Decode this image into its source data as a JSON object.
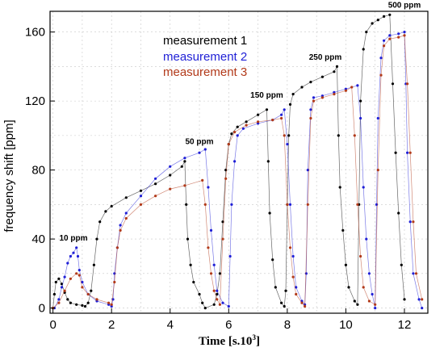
{
  "chart_data": {
    "type": "scatter",
    "xlabel": "Time [s.10",
    "xlabel_sup": "3",
    "xlabel_end": "]",
    "ylabel": "frequency shift  [ppm]",
    "xlim": [
      -0.1,
      12.8
    ],
    "ylim": [
      -3,
      172
    ],
    "xticks": [
      0,
      2,
      4,
      6,
      8,
      10,
      12
    ],
    "yticks": [
      0,
      40,
      80,
      120,
      160
    ],
    "grid": true,
    "legend_position": "top-center",
    "annotations": [
      {
        "text": "10 ppm",
        "x": 0.7,
        "y": 39
      },
      {
        "text": "50 ppm",
        "x": 5.0,
        "y": 95
      },
      {
        "text": "150 ppm",
        "x": 7.3,
        "y": 122
      },
      {
        "text": "250 ppm",
        "x": 9.3,
        "y": 144
      },
      {
        "text": "500 ppm",
        "x": 12.0,
        "y": 174
      }
    ],
    "series": [
      {
        "name": "measurement 1",
        "color": "#000000",
        "points": [
          [
            0.0,
            0
          ],
          [
            0.05,
            8
          ],
          [
            0.1,
            15
          ],
          [
            0.2,
            17
          ],
          [
            0.3,
            14
          ],
          [
            0.4,
            9
          ],
          [
            0.5,
            5
          ],
          [
            0.6,
            3
          ],
          [
            0.8,
            2
          ],
          [
            1.0,
            1.5
          ],
          [
            1.1,
            1
          ],
          [
            1.2,
            3
          ],
          [
            1.3,
            10
          ],
          [
            1.4,
            25
          ],
          [
            1.5,
            40
          ],
          [
            1.6,
            50
          ],
          [
            1.8,
            56
          ],
          [
            2.0,
            59
          ],
          [
            2.5,
            64
          ],
          [
            3.0,
            68
          ],
          [
            3.5,
            72
          ],
          [
            4.0,
            77
          ],
          [
            4.4,
            82
          ],
          [
            4.5,
            85
          ],
          [
            4.55,
            60
          ],
          [
            4.6,
            40
          ],
          [
            4.7,
            25
          ],
          [
            4.8,
            15
          ],
          [
            5.0,
            8
          ],
          [
            5.1,
            3
          ],
          [
            5.2,
            0
          ],
          [
            5.5,
            2
          ],
          [
            5.6,
            8
          ],
          [
            5.7,
            20
          ],
          [
            5.8,
            50
          ],
          [
            5.9,
            80
          ],
          [
            6.0,
            95
          ],
          [
            6.1,
            101
          ],
          [
            6.3,
            105
          ],
          [
            6.6,
            108
          ],
          [
            7.0,
            112
          ],
          [
            7.3,
            115
          ],
          [
            7.35,
            85
          ],
          [
            7.4,
            55
          ],
          [
            7.5,
            28
          ],
          [
            7.6,
            12
          ],
          [
            7.8,
            3
          ],
          [
            7.9,
            1
          ],
          [
            7.95,
            10
          ],
          [
            8.0,
            60
          ],
          [
            8.05,
            100
          ],
          [
            8.1,
            118
          ],
          [
            8.2,
            124
          ],
          [
            8.5,
            128
          ],
          [
            8.8,
            131
          ],
          [
            9.2,
            134
          ],
          [
            9.6,
            137
          ],
          [
            9.7,
            140
          ],
          [
            9.75,
            100
          ],
          [
            9.8,
            70
          ],
          [
            9.9,
            45
          ],
          [
            10.0,
            25
          ],
          [
            10.1,
            12
          ],
          [
            10.3,
            4
          ],
          [
            10.4,
            2
          ],
          [
            10.45,
            60
          ],
          [
            10.5,
            120
          ],
          [
            10.6,
            150
          ],
          [
            10.7,
            160
          ],
          [
            10.9,
            165
          ],
          [
            11.1,
            167
          ],
          [
            11.3,
            169
          ],
          [
            11.5,
            170
          ],
          [
            11.6,
            130
          ],
          [
            11.7,
            90
          ],
          [
            11.8,
            55
          ],
          [
            11.9,
            25
          ],
          [
            12.0,
            5
          ]
        ]
      },
      {
        "name": "measurement 2",
        "color": "#1f1fd6",
        "points": [
          [
            0.05,
            0
          ],
          [
            0.2,
            5
          ],
          [
            0.3,
            12
          ],
          [
            0.4,
            18
          ],
          [
            0.5,
            26
          ],
          [
            0.6,
            30
          ],
          [
            0.7,
            32
          ],
          [
            0.8,
            35
          ],
          [
            0.85,
            30
          ],
          [
            0.9,
            22
          ],
          [
            1.0,
            15
          ],
          [
            1.2,
            8
          ],
          [
            1.5,
            4
          ],
          [
            1.9,
            2
          ],
          [
            2.0,
            1
          ],
          [
            2.05,
            5
          ],
          [
            2.1,
            20
          ],
          [
            2.2,
            35
          ],
          [
            2.3,
            48
          ],
          [
            2.5,
            55
          ],
          [
            3.0,
            65
          ],
          [
            3.5,
            75
          ],
          [
            4.0,
            82
          ],
          [
            4.5,
            87
          ],
          [
            5.0,
            90
          ],
          [
            5.2,
            92
          ],
          [
            5.3,
            70
          ],
          [
            5.4,
            45
          ],
          [
            5.5,
            25
          ],
          [
            5.6,
            10
          ],
          [
            5.8,
            3
          ],
          [
            6.0,
            1
          ],
          [
            6.05,
            30
          ],
          [
            6.1,
            60
          ],
          [
            6.2,
            85
          ],
          [
            6.3,
            100
          ],
          [
            6.5,
            104
          ],
          [
            7.0,
            107
          ],
          [
            7.5,
            109
          ],
          [
            7.8,
            112
          ],
          [
            7.9,
            115
          ],
          [
            8.0,
            95
          ],
          [
            8.1,
            60
          ],
          [
            8.2,
            30
          ],
          [
            8.3,
            12
          ],
          [
            8.5,
            4
          ],
          [
            8.6,
            2
          ],
          [
            8.65,
            20
          ],
          [
            8.7,
            80
          ],
          [
            8.8,
            115
          ],
          [
            8.9,
            122
          ],
          [
            9.2,
            123
          ],
          [
            9.6,
            125
          ],
          [
            10.0,
            127
          ],
          [
            10.4,
            129
          ],
          [
            10.5,
            110
          ],
          [
            10.6,
            70
          ],
          [
            10.7,
            40
          ],
          [
            10.8,
            20
          ],
          [
            10.9,
            8
          ],
          [
            11.0,
            0
          ],
          [
            11.05,
            60
          ],
          [
            11.1,
            110
          ],
          [
            11.2,
            145
          ],
          [
            11.3,
            155
          ],
          [
            11.5,
            158
          ],
          [
            11.8,
            159
          ],
          [
            12.0,
            160
          ],
          [
            12.05,
            130
          ],
          [
            12.1,
            90
          ],
          [
            12.2,
            50
          ],
          [
            12.3,
            20
          ],
          [
            12.5,
            5
          ],
          [
            12.6,
            0
          ]
        ]
      },
      {
        "name": "measurement 3",
        "color": "#b23a1a",
        "points": [
          [
            0.0,
            0
          ],
          [
            0.2,
            3
          ],
          [
            0.4,
            10
          ],
          [
            0.6,
            17
          ],
          [
            0.8,
            20
          ],
          [
            0.9,
            19
          ],
          [
            1.0,
            12
          ],
          [
            1.2,
            8
          ],
          [
            1.5,
            5
          ],
          [
            1.9,
            3
          ],
          [
            2.0,
            2
          ],
          [
            2.1,
            15
          ],
          [
            2.2,
            35
          ],
          [
            2.3,
            45
          ],
          [
            2.5,
            52
          ],
          [
            3.0,
            60
          ],
          [
            3.5,
            65
          ],
          [
            4.0,
            69
          ],
          [
            4.5,
            71
          ],
          [
            5.1,
            74
          ],
          [
            5.2,
            60
          ],
          [
            5.3,
            35
          ],
          [
            5.4,
            20
          ],
          [
            5.5,
            10
          ],
          [
            5.6,
            5
          ],
          [
            5.7,
            2
          ],
          [
            5.8,
            40
          ],
          [
            5.9,
            75
          ],
          [
            6.0,
            95
          ],
          [
            6.2,
            102
          ],
          [
            6.6,
            106
          ],
          [
            7.0,
            108
          ],
          [
            7.5,
            109
          ],
          [
            7.8,
            110
          ],
          [
            7.9,
            100
          ],
          [
            8.0,
            60
          ],
          [
            8.1,
            35
          ],
          [
            8.2,
            18
          ],
          [
            8.3,
            8
          ],
          [
            8.5,
            3
          ],
          [
            8.6,
            1
          ],
          [
            8.7,
            60
          ],
          [
            8.8,
            110
          ],
          [
            8.9,
            120
          ],
          [
            9.2,
            122
          ],
          [
            9.6,
            124
          ],
          [
            10.0,
            126
          ],
          [
            10.2,
            128
          ],
          [
            10.3,
            100
          ],
          [
            10.4,
            60
          ],
          [
            10.5,
            30
          ],
          [
            10.6,
            12
          ],
          [
            10.8,
            4
          ],
          [
            11.0,
            2
          ],
          [
            11.1,
            80
          ],
          [
            11.2,
            135
          ],
          [
            11.3,
            152
          ],
          [
            11.5,
            156
          ],
          [
            11.8,
            157
          ],
          [
            12.0,
            158
          ],
          [
            12.1,
            130
          ],
          [
            12.2,
            90
          ],
          [
            12.3,
            50
          ],
          [
            12.4,
            20
          ],
          [
            12.6,
            5
          ]
        ]
      }
    ]
  }
}
